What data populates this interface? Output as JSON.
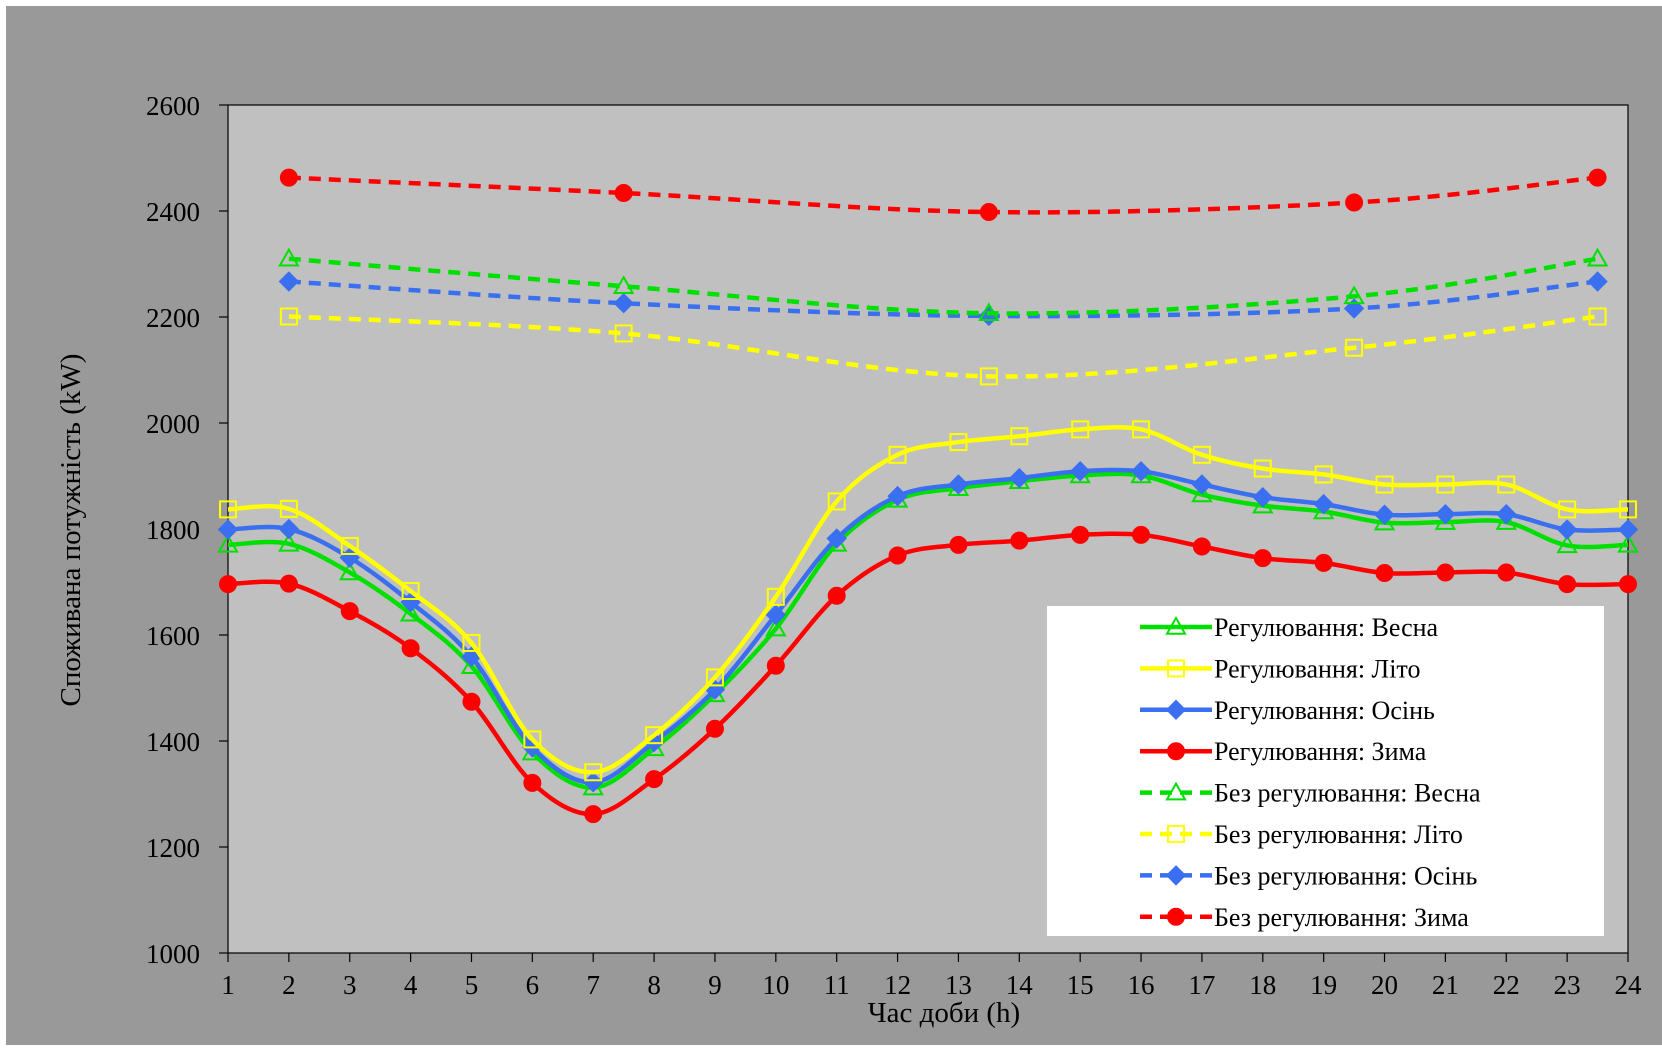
{
  "chart_data": {
    "type": "line",
    "title": "",
    "xlabel": "Час доби (h)",
    "ylabel": "Споживана потужність (kW)",
    "xlim": [
      1,
      24
    ],
    "ylim": [
      1000,
      2600
    ],
    "xticks": [
      "1",
      "2",
      "3",
      "4",
      "5",
      "6",
      "7",
      "8",
      "9",
      "10",
      "11",
      "12",
      "13",
      "14",
      "15",
      "16",
      "17",
      "18",
      "19",
      "20",
      "21",
      "22",
      "23",
      "24"
    ],
    "yticks": [
      "1000",
      "1200",
      "1400",
      "1600",
      "1800",
      "2000",
      "2200",
      "2400",
      "2600"
    ],
    "grid": false,
    "legend_position": "bottom-right",
    "series": [
      {
        "name": "Регулювання: Весна",
        "color": "#00e000",
        "dash": false,
        "marker": "triangle-open",
        "x": [
          1,
          2,
          3,
          4,
          5,
          6,
          7,
          8,
          9,
          10,
          11,
          12,
          13,
          14,
          15,
          16,
          17,
          18,
          19,
          20,
          21,
          22,
          23,
          24
        ],
        "y": [
          1770,
          1772,
          1718,
          1640,
          1541,
          1378,
          1312,
          1386,
          1488,
          1612,
          1772,
          1855,
          1877,
          1890,
          1901,
          1901,
          1865,
          1844,
          1833,
          1812,
          1813,
          1813,
          1769,
          1770
        ]
      },
      {
        "name": "Регулювання: Літо",
        "color": "#ffff00",
        "dash": false,
        "marker": "square-open",
        "x": [
          1,
          2,
          3,
          4,
          5,
          6,
          7,
          8,
          9,
          10,
          11,
          12,
          13,
          14,
          15,
          16,
          17,
          18,
          19,
          20,
          21,
          22,
          23,
          24
        ],
        "y": [
          1837,
          1838,
          1768,
          1683,
          1585,
          1403,
          1341,
          1411,
          1520,
          1672,
          1852,
          1940,
          1964,
          1975,
          1988,
          1988,
          1940,
          1914,
          1903,
          1884,
          1884,
          1884,
          1837,
          1837
        ]
      },
      {
        "name": "Регулювання: Осінь",
        "color": "#3a6ff0",
        "dash": false,
        "marker": "diamond",
        "x": [
          1,
          2,
          3,
          4,
          5,
          6,
          7,
          8,
          9,
          10,
          11,
          12,
          13,
          14,
          15,
          16,
          17,
          18,
          19,
          20,
          21,
          22,
          23,
          24
        ],
        "y": [
          1799,
          1800,
          1746,
          1662,
          1559,
          1388,
          1322,
          1398,
          1497,
          1638,
          1782,
          1862,
          1884,
          1896,
          1909,
          1909,
          1884,
          1860,
          1847,
          1827,
          1828,
          1828,
          1799,
          1799
        ]
      },
      {
        "name": "Регулювання: Зима",
        "color": "#ff0000",
        "dash": false,
        "marker": "circle",
        "x": [
          1,
          2,
          3,
          4,
          5,
          6,
          7,
          8,
          9,
          10,
          11,
          12,
          13,
          14,
          15,
          16,
          17,
          18,
          19,
          20,
          21,
          22,
          23,
          24
        ],
        "y": [
          1696,
          1697,
          1645,
          1575,
          1474,
          1321,
          1262,
          1328,
          1423,
          1542,
          1674,
          1750,
          1770,
          1778,
          1789,
          1789,
          1767,
          1745,
          1736,
          1717,
          1718,
          1718,
          1696,
          1696
        ]
      },
      {
        "name": "Без регулювання: Весна",
        "color": "#00e000",
        "dash": true,
        "marker": "triangle-open",
        "x": [
          2,
          7.5,
          13.5,
          19.5,
          23.5
        ],
        "y": [
          2310,
          2258,
          2207,
          2239,
          2310
        ]
      },
      {
        "name": "Без регулювання: Літо",
        "color": "#ffff00",
        "dash": true,
        "marker": "square-open",
        "x": [
          2,
          7.5,
          13.5,
          19.5,
          23.5
        ],
        "y": [
          2201,
          2169,
          2088,
          2142,
          2201
        ]
      },
      {
        "name": "Без регулювання: Осінь",
        "color": "#3a6ff0",
        "dash": true,
        "marker": "diamond",
        "x": [
          2,
          7.5,
          13.5,
          19.5,
          23.5
        ],
        "y": [
          2267,
          2226,
          2202,
          2216,
          2267
        ]
      },
      {
        "name": "Без регулювання: Зима",
        "color": "#ff0000",
        "dash": true,
        "marker": "circle",
        "x": [
          2,
          7.5,
          13.5,
          19.5,
          23.5
        ],
        "y": [
          2463,
          2434,
          2398,
          2416,
          2463
        ]
      }
    ]
  },
  "style": {
    "frame_color": "#999999",
    "plot_bg": "#c0c0c0",
    "legend_bg": "#ffffff"
  }
}
